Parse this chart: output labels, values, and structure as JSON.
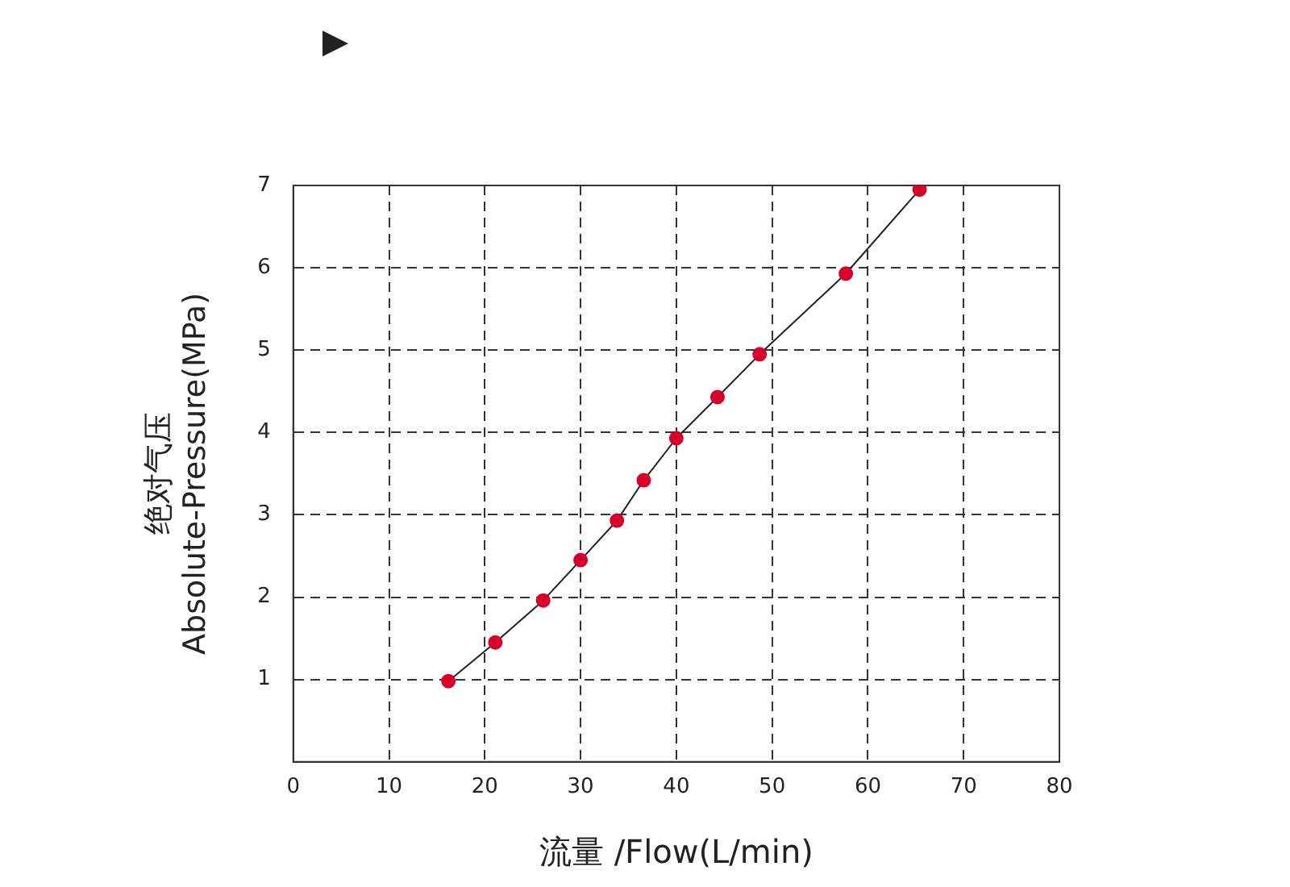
{
  "chart_data": {
    "type": "line",
    "xlabel": "流量 /Flow(L/min)",
    "ylabel": "绝对气压\nAbsolute-Pressure(MPa)",
    "x": [
      16.2,
      21.1,
      26.1,
      30,
      33.8,
      36.6,
      40,
      44.3,
      48.7,
      57.7,
      65.4
    ],
    "series": [
      {
        "color": "#d7002a",
        "values": [
          0.98,
          1.45,
          1.96,
          2.45,
          2.93,
          3.42,
          3.93,
          4.43,
          4.95,
          5.93,
          6.95
        ]
      }
    ],
    "xlim": [
      0,
      80
    ],
    "xticks": [
      0,
      10,
      20,
      30,
      40,
      50,
      60,
      70,
      80
    ],
    "ylim": [
      0,
      7
    ],
    "yticks": [
      1,
      2,
      3,
      4,
      5,
      6,
      7
    ],
    "grid": true,
    "legend": false,
    "marker": "circle",
    "line_style": "solid"
  }
}
